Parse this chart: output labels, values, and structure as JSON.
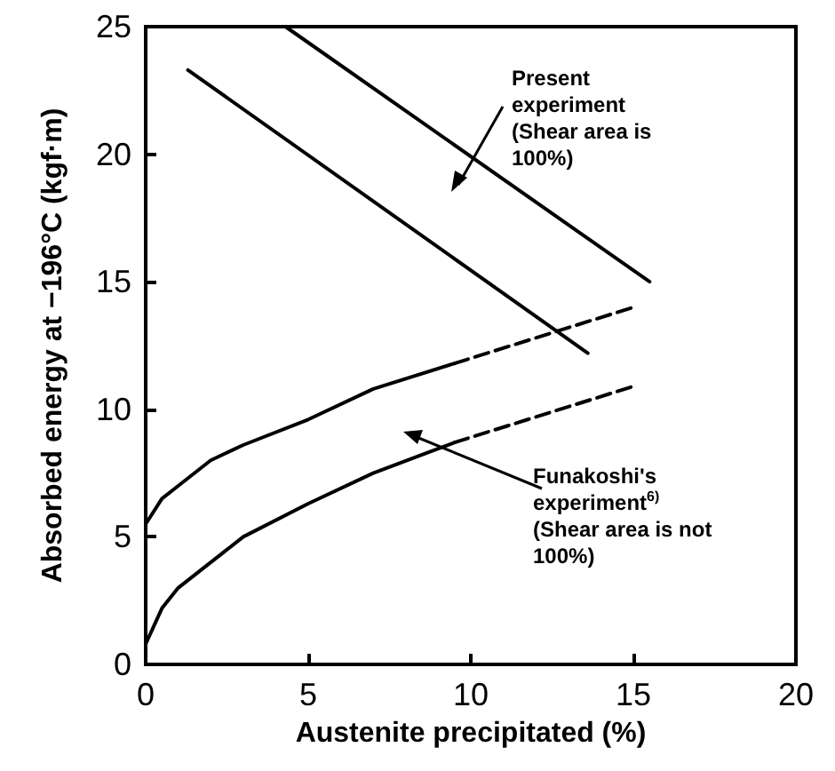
{
  "chart_data": {
    "type": "line",
    "xlabel": "Austenite precipitated (%)",
    "ylabel": "Absorbed energy at −196°C (kgf·m)",
    "xlim": [
      0,
      20
    ],
    "ylim": [
      0,
      25
    ],
    "xticks": [
      0,
      5,
      10,
      15,
      20
    ],
    "yticks": [
      0,
      5,
      10,
      15,
      20,
      25
    ],
    "marker": "none",
    "series": [
      {
        "color": "#000000",
        "line_style": "solid",
        "x": [
          4.3,
          15.5
        ],
        "values": [
          25,
          15
        ]
      },
      {
        "color": "#000000",
        "line_style": "solid",
        "x": [
          1.3,
          13.6
        ],
        "values": [
          23.3,
          12.2
        ]
      },
      {
        "color": "#000000",
        "line_style": "solid",
        "x": [
          0,
          0.5,
          1,
          2,
          3,
          5,
          7,
          9.5
        ],
        "values": [
          5.5,
          6.5,
          7,
          8,
          8.6,
          9.6,
          10.8,
          11.8
        ]
      },
      {
        "color": "#000000",
        "line_style": "dashed",
        "x": [
          9.5,
          15
        ],
        "values": [
          11.8,
          14
        ]
      },
      {
        "color": "#000000",
        "line_style": "solid",
        "x": [
          0,
          0.5,
          1,
          2,
          3,
          5,
          7,
          9.5
        ],
        "values": [
          0.8,
          2.2,
          3,
          4,
          5,
          6.3,
          7.5,
          8.7
        ]
      },
      {
        "color": "#000000",
        "line_style": "dashed",
        "x": [
          9.5,
          15
        ],
        "values": [
          8.7,
          10.9
        ]
      }
    ],
    "annotations": [
      "Present\nexperiment\n(Shear area is\n100%)",
      "Funakoshi's\nexperiment$^{6)}$\n(Shear area is not\n100%)"
    ]
  }
}
